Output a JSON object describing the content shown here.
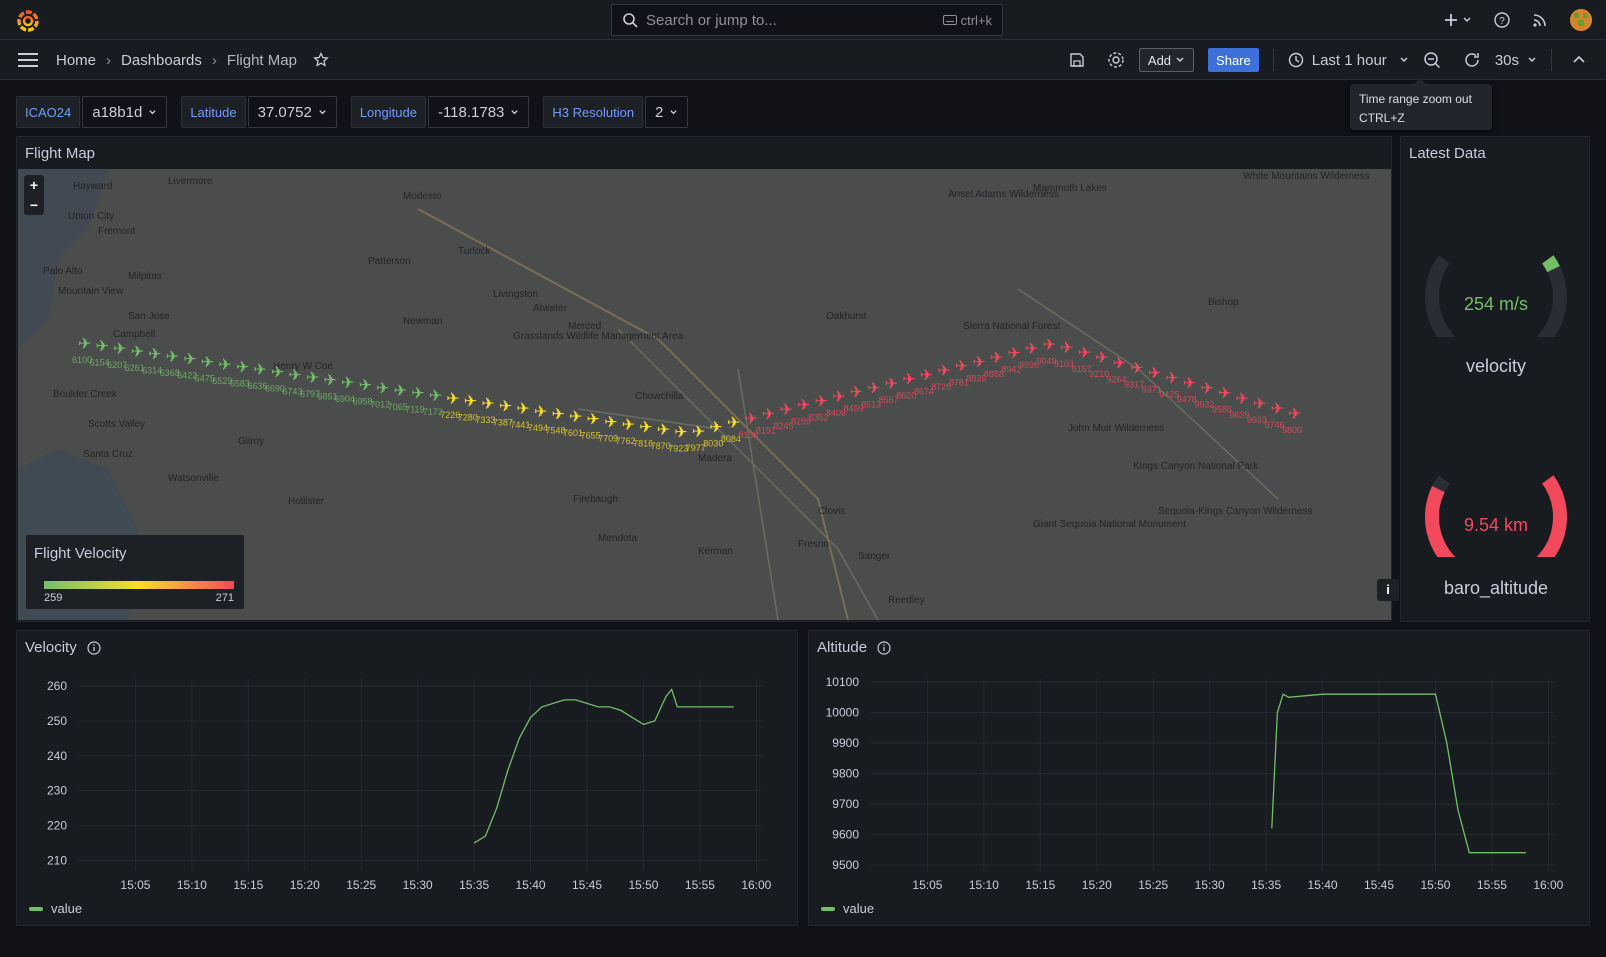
{
  "topbar": {
    "search_placeholder": "Search or jump to...",
    "search_shortcut": "ctrl+k"
  },
  "breadcrumb": {
    "home": "Home",
    "dashboards": "Dashboards",
    "current": "Flight Map"
  },
  "toolbar": {
    "add_label": "Add",
    "share_label": "Share",
    "time_range": "Last 1 hour",
    "refresh_interval": "30s"
  },
  "tooltip": {
    "title": "Time range zoom out",
    "shortcut": "CTRL+Z"
  },
  "variables": [
    {
      "label": "ICAO24",
      "value": "a18b1d"
    },
    {
      "label": "Latitude",
      "value": "37.0752"
    },
    {
      "label": "Longitude",
      "value": "-118.1783"
    },
    {
      "label": "H3 Resolution",
      "value": "2"
    }
  ],
  "map_panel": {
    "title": "Flight Map",
    "zoom_in": "+",
    "zoom_out": "−",
    "info": "i",
    "legend": {
      "title": "Flight Velocity",
      "min": "259",
      "max": "271"
    },
    "place_labels": [
      "Hayward",
      "Livermore",
      "Modesto",
      "Fremont",
      "Union City",
      "Palo Alto",
      "Milpitas",
      "Mountain View",
      "San Jose",
      "Campbell",
      "Turlock",
      "Patterson",
      "Livingston",
      "Atwater",
      "Merced",
      "Newman",
      "Grasslands Wildlife Management Area",
      "Chowchilla",
      "Boulder Creek",
      "Scotts Valley",
      "Santa Cruz",
      "Gilroy",
      "Watsonville",
      "Hollister",
      "Madera",
      "Firebaugh",
      "Mendota",
      "Kerman",
      "Fresno",
      "Clovis",
      "Sanger",
      "Reedley",
      "Oakhurst",
      "Sierra National Forest",
      "Ansel Adams Wilderness",
      "Mammoth Lakes",
      "Bishop",
      "John Muir Wilderness",
      "Kings Canyon National Park",
      "Sequoia-Kings Canyon Wilderness",
      "Giant Sequoia National Monument",
      "White Mountains Wilderness",
      "Henry W Coe"
    ],
    "track_colors": {
      "low": "#73bf69",
      "mid": "#fade2a",
      "high": "#f2495c"
    }
  },
  "latest_panel": {
    "title": "Latest Data",
    "gauges": [
      {
        "value": "254 m/s",
        "name": "velocity",
        "color": "#73bf69",
        "fraction": 0.04
      },
      {
        "value": "9.54 km",
        "name": "baro_altitude",
        "color": "#f2495c",
        "fraction": 0.96
      }
    ]
  },
  "velocity_panel": {
    "title": "Velocity",
    "legend": "value",
    "chart_data": {
      "type": "line",
      "series": [
        {
          "name": "value"
        }
      ],
      "x_ticks": [
        "15:05",
        "15:10",
        "15:15",
        "15:20",
        "15:25",
        "15:30",
        "15:35",
        "15:40",
        "15:45",
        "15:50",
        "15:55",
        "16:00"
      ],
      "y_ticks": [
        "210",
        "220",
        "230",
        "240",
        "250",
        "260"
      ],
      "ylim": [
        207,
        262
      ],
      "points": [
        [
          "15:35",
          215
        ],
        [
          "15:36",
          217
        ],
        [
          "15:37",
          225
        ],
        [
          "15:38",
          236
        ],
        [
          "15:39",
          245
        ],
        [
          "15:40",
          251
        ],
        [
          "15:41",
          254
        ],
        [
          "15:42",
          255
        ],
        [
          "15:43",
          256
        ],
        [
          "15:44",
          256
        ],
        [
          "15:45",
          255
        ],
        [
          "15:46",
          254
        ],
        [
          "15:47",
          254
        ],
        [
          "15:48",
          253
        ],
        [
          "15:49",
          251
        ],
        [
          "15:50",
          249
        ],
        [
          "15:51",
          250
        ],
        [
          "15:52",
          257
        ],
        [
          "15:52:30",
          259
        ],
        [
          "15:53",
          254
        ],
        [
          "15:54",
          254
        ],
        [
          "15:55",
          254
        ],
        [
          "15:57",
          254
        ],
        [
          "15:58",
          254
        ]
      ]
    }
  },
  "altitude_panel": {
    "title": "Altitude",
    "legend": "value",
    "chart_data": {
      "type": "line",
      "series": [
        {
          "name": "value"
        }
      ],
      "x_ticks": [
        "15:05",
        "15:10",
        "15:15",
        "15:20",
        "15:25",
        "15:30",
        "15:35",
        "15:40",
        "15:45",
        "15:50",
        "15:55",
        "16:00"
      ],
      "y_ticks": [
        "9500",
        "9600",
        "9700",
        "9800",
        "9900",
        "10000",
        "10100"
      ],
      "ylim": [
        9480,
        10110
      ],
      "points": [
        [
          "15:35:30",
          9620
        ],
        [
          "15:36",
          10000
        ],
        [
          "15:36:30",
          10060
        ],
        [
          "15:37",
          10050
        ],
        [
          "15:40",
          10060
        ],
        [
          "15:45",
          10060
        ],
        [
          "15:50",
          10060
        ],
        [
          "15:51",
          9900
        ],
        [
          "15:52",
          9680
        ],
        [
          "15:53",
          9540
        ],
        [
          "15:55",
          9540
        ],
        [
          "15:57",
          9540
        ],
        [
          "15:58",
          9540
        ]
      ]
    }
  }
}
